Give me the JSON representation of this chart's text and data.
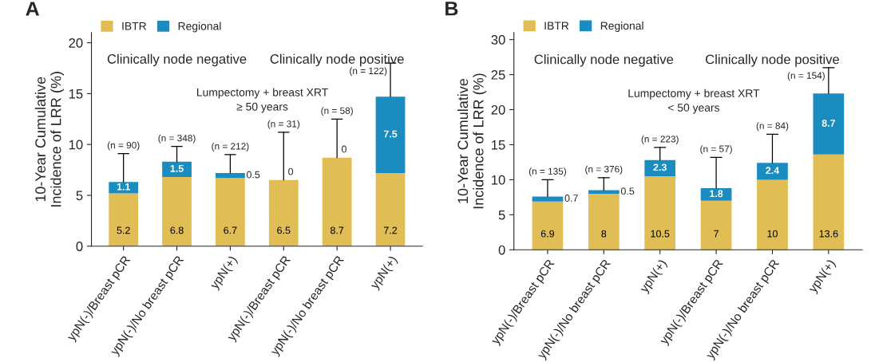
{
  "chart_data": [
    {
      "type": "bar",
      "title": "A",
      "ylabel": "10-Year Cumulative\nIncidence of LRR (%)",
      "stacked": true,
      "data_labels": true,
      "legend": "top left",
      "grid": false,
      "categories": [
        "ypN(-)/Breast pCR",
        "ypN(-)/No breast pCR",
        "ypN(+)",
        "ypN(-)/Breast pCR",
        "ypN(-)/No breast pCR",
        "ypN(+)"
      ],
      "series": [
        {
          "name": "IBTR",
          "color": "#e1bd55",
          "values": [
            5.2,
            6.8,
            6.7,
            6.5,
            8.7,
            7.2
          ]
        },
        {
          "name": "Regional",
          "color": "#1b8cbf",
          "values": [
            1.1,
            1.5,
            0.5,
            0,
            0,
            7.5
          ],
          "errors": [
            [
              6.3,
              9.1
            ],
            [
              8.3,
              9.8
            ],
            [
              7.2,
              9.0
            ],
            [
              6.5,
              11.2
            ],
            [
              8.7,
              12.5
            ],
            [
              14.7,
              18.0
            ]
          ]
        }
      ],
      "ylim": [
        0,
        21
      ],
      "yticks": [
        0,
        5,
        10,
        15,
        20
      ],
      "annotations": [
        "Clinically node negative",
        "Clinically node positive",
        "Lumpectomy + breast XRT\n≥ 50 years",
        "(n = 90)",
        "(n = 348)",
        "(n = 212)",
        "(n = 31)",
        "(n = 58)",
        "(n = 122)"
      ]
    },
    {
      "type": "bar",
      "title": "B",
      "ylabel": "10-Year Cumulative\nIncidence of LRR (%)",
      "stacked": true,
      "data_labels": true,
      "legend": "top left",
      "grid": false,
      "categories": [
        "ypN(-)/Breast pCR",
        "ypN(-)/No breast pCR",
        "ypN(+)",
        "ypN(-)/Breast pCR",
        "ypN(-)/No breast pCR",
        "ypN(+)"
      ],
      "series": [
        {
          "name": "IBTR",
          "color": "#e1bd55",
          "values": [
            6.9,
            8,
            10.5,
            7,
            10,
            13.6
          ]
        },
        {
          "name": "Regional",
          "color": "#1b8cbf",
          "values": [
            0.7,
            0.5,
            2.3,
            1.8,
            2.4,
            8.7
          ],
          "errors": [
            [
              7.6,
              10.0
            ],
            [
              8.5,
              10.3
            ],
            [
              12.8,
              14.6
            ],
            [
              8.8,
              13.2
            ],
            [
              12.4,
              16.5
            ],
            [
              22.3,
              26.0
            ]
          ]
        }
      ],
      "ylim": [
        0,
        31
      ],
      "yticks": [
        0,
        5,
        10,
        15,
        20,
        25,
        30
      ],
      "annotations": [
        "Clinically node negative",
        "Clinically node positive",
        "Lumpectomy + breast XRT\n< 50 years",
        "(n = 135)",
        "(n = 376)",
        "(n = 223)",
        "(n = 57)",
        "(n = 84)",
        "(n = 154)"
      ]
    }
  ]
}
